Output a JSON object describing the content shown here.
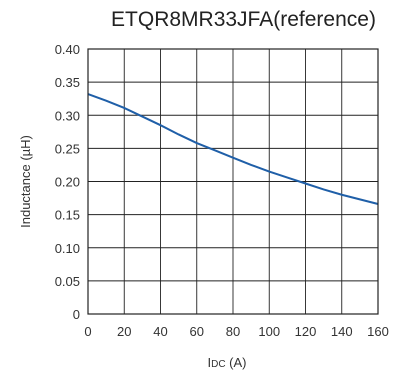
{
  "chart_data": {
    "type": "line",
    "title": "ETQR8MR33JFA(reference)",
    "xlabel_main": "I",
    "xlabel_sub": "DC",
    "xlabel_unit": " (A)",
    "ylabel": "Inductance (µH)",
    "xlim": [
      0,
      160
    ],
    "ylim": [
      0,
      0.4
    ],
    "x_ticks": [
      "0",
      "20",
      "40",
      "60",
      "80",
      "100",
      "120",
      "140",
      "160"
    ],
    "y_ticks": [
      "0",
      "0.05",
      "0.10",
      "0.15",
      "0.20",
      "0.25",
      "0.30",
      "0.35",
      "0.40"
    ],
    "x_tick_values": [
      0,
      20,
      40,
      60,
      80,
      100,
      120,
      140,
      160
    ],
    "y_tick_values": [
      0,
      0.05,
      0.1,
      0.15,
      0.2,
      0.25,
      0.3,
      0.35,
      0.4
    ],
    "grid": true,
    "series": [
      {
        "color": "#1f5fa8",
        "x": [
          0,
          10,
          20,
          30,
          40,
          50,
          60,
          70,
          80,
          90,
          100,
          110,
          120,
          130,
          140,
          150,
          160
        ],
        "y": [
          0.332,
          0.322,
          0.311,
          0.298,
          0.285,
          0.271,
          0.258,
          0.247,
          0.236,
          0.225,
          0.215,
          0.206,
          0.197,
          0.188,
          0.18,
          0.173,
          0.166
        ]
      }
    ]
  }
}
